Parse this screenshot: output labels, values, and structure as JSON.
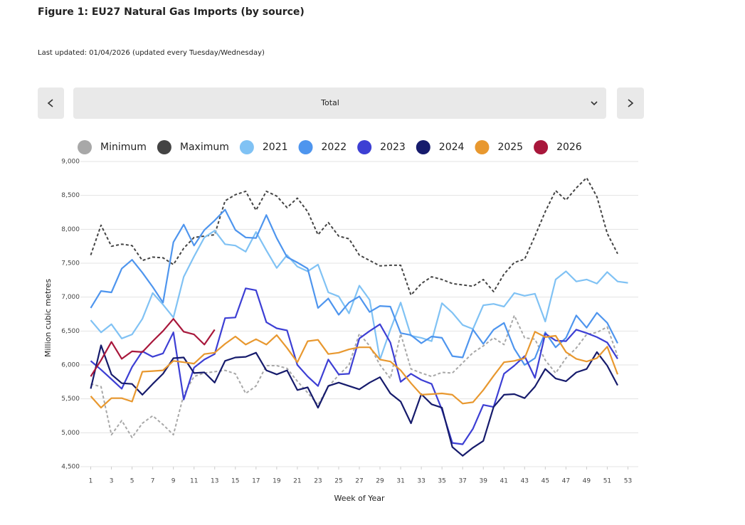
{
  "header": {
    "title": "Figure 1: EU27 Natural Gas Imports (by source)",
    "subtitle": "Last updated: 01/04/2026 (updated every Tuesday/Wednesday)"
  },
  "controls": {
    "selected": "Total"
  },
  "chart_data": {
    "type": "line",
    "x_label": "Week of Year",
    "y_label": "Million cubic metres",
    "x": [
      1,
      2,
      3,
      4,
      5,
      6,
      7,
      8,
      9,
      10,
      11,
      12,
      13,
      14,
      15,
      16,
      17,
      18,
      19,
      20,
      21,
      22,
      23,
      24,
      25,
      26,
      27,
      28,
      29,
      30,
      31,
      32,
      33,
      34,
      35,
      36,
      37,
      38,
      39,
      40,
      41,
      42,
      43,
      44,
      45,
      46,
      47,
      48,
      49,
      50,
      51,
      52,
      53
    ],
    "xlim": [
      0,
      54
    ],
    "xticks": [
      1,
      3,
      5,
      7,
      9,
      11,
      13,
      15,
      17,
      19,
      21,
      23,
      25,
      27,
      29,
      31,
      33,
      35,
      37,
      39,
      41,
      43,
      45,
      47,
      49,
      51,
      53
    ],
    "ylim": [
      4500,
      9000
    ],
    "yticks": [
      {
        "value": 4500,
        "label": "4,500"
      },
      {
        "value": 5000,
        "label": "5,000"
      },
      {
        "value": 5500,
        "label": "5,500"
      },
      {
        "value": 6000,
        "label": "6,000"
      },
      {
        "value": 6500,
        "label": "6,500"
      },
      {
        "value": 7000,
        "label": "7,000"
      },
      {
        "value": 7500,
        "label": "7,500"
      },
      {
        "value": 8000,
        "label": "8,000"
      },
      {
        "value": 8500,
        "label": "8,500"
      },
      {
        "value": 9000,
        "label": "9,000"
      }
    ],
    "grid": true,
    "legend": "top",
    "series": [
      {
        "name": "Minimum",
        "color": "#a8a8a8",
        "dashed": true,
        "values": [
          5720,
          5680,
          4970,
          5180,
          4930,
          5140,
          5250,
          5120,
          4970,
          5560,
          5830,
          5880,
          5900,
          5920,
          5870,
          5580,
          5690,
          5990,
          5990,
          5950,
          5760,
          5590,
          5410,
          5680,
          5850,
          6000,
          6460,
          6280,
          6000,
          5800,
          6460,
          5940,
          5880,
          5830,
          5890,
          5880,
          6030,
          6180,
          6280,
          6400,
          6300,
          6730,
          6400,
          6380,
          6070,
          5880,
          6100,
          6250,
          6450,
          6480,
          6560,
          6130,
          null
        ]
      },
      {
        "name": "Maximum",
        "color": "#444444",
        "dashed": true,
        "values": [
          7620,
          8060,
          7750,
          7780,
          7760,
          7540,
          7590,
          7580,
          7480,
          7720,
          7880,
          7900,
          7920,
          8420,
          8510,
          8560,
          8280,
          8560,
          8490,
          8320,
          8460,
          8260,
          7920,
          8100,
          7900,
          7860,
          7620,
          7540,
          7460,
          7470,
          7470,
          7030,
          7200,
          7300,
          7260,
          7200,
          7180,
          7160,
          7260,
          7080,
          7340,
          7510,
          7560,
          7900,
          8260,
          8570,
          8430,
          8610,
          8760,
          8480,
          7940,
          7640,
          null
        ]
      },
      {
        "name": "2021",
        "color": "#80c2f4",
        "dashed": false,
        "values": [
          6660,
          6480,
          6600,
          6390,
          6450,
          6680,
          7060,
          6890,
          6700,
          7300,
          7600,
          7880,
          7980,
          7780,
          7760,
          7670,
          7960,
          7690,
          7430,
          7620,
          7450,
          7380,
          7480,
          7070,
          7010,
          6760,
          7170,
          6960,
          6080,
          6520,
          6920,
          6430,
          6400,
          6350,
          6910,
          6770,
          6590,
          6530,
          6880,
          6900,
          6860,
          7060,
          7020,
          7050,
          6640,
          7260,
          7380,
          7230,
          7260,
          7200,
          7370,
          7230,
          7210
        ]
      },
      {
        "name": "2022",
        "color": "#4e95ee",
        "dashed": false,
        "values": [
          6840,
          7090,
          7070,
          7420,
          7550,
          7360,
          7150,
          6920,
          7810,
          8070,
          7760,
          7990,
          8130,
          8290,
          7990,
          7880,
          7870,
          8210,
          7870,
          7590,
          7510,
          7420,
          6840,
          6980,
          6740,
          6920,
          7010,
          6780,
          6870,
          6860,
          6470,
          6440,
          6320,
          6420,
          6400,
          6130,
          6110,
          6520,
          6310,
          6520,
          6620,
          6240,
          6000,
          6100,
          6480,
          6260,
          6400,
          6730,
          6550,
          6770,
          6620,
          6320,
          null
        ]
      },
      {
        "name": "2023",
        "color": "#3d3fd4",
        "dashed": false,
        "values": [
          6060,
          5930,
          5790,
          5650,
          5970,
          6200,
          6120,
          6170,
          6480,
          5490,
          5960,
          6080,
          6160,
          6690,
          6700,
          7130,
          7100,
          6630,
          6540,
          6510,
          6000,
          5830,
          5690,
          6080,
          5860,
          5870,
          6390,
          6500,
          6600,
          6330,
          5750,
          5870,
          5780,
          5720,
          5340,
          4850,
          4830,
          5060,
          5410,
          5380,
          5870,
          5990,
          6130,
          5810,
          6460,
          6360,
          6350,
          6520,
          6470,
          6410,
          6330,
          6090,
          null
        ]
      },
      {
        "name": "2024",
        "color": "#161b6c",
        "dashed": false,
        "values": [
          5650,
          6290,
          5860,
          5730,
          5720,
          5560,
          5720,
          5870,
          6100,
          6110,
          5880,
          5890,
          5740,
          6060,
          6110,
          6120,
          6180,
          5920,
          5860,
          5920,
          5630,
          5670,
          5370,
          5690,
          5740,
          5690,
          5640,
          5740,
          5820,
          5580,
          5460,
          5140,
          5570,
          5420,
          5370,
          4790,
          4660,
          4780,
          4880,
          5380,
          5560,
          5570,
          5510,
          5680,
          5940,
          5800,
          5760,
          5890,
          5940,
          6190,
          5990,
          5700,
          null
        ]
      },
      {
        "name": "2025",
        "color": "#e8982f",
        "dashed": false,
        "values": [
          5540,
          5370,
          5510,
          5510,
          5460,
          5900,
          5910,
          5920,
          6060,
          6040,
          6020,
          6160,
          6180,
          6310,
          6420,
          6300,
          6380,
          6300,
          6440,
          6250,
          6040,
          6350,
          6370,
          6160,
          6180,
          6230,
          6260,
          6260,
          6080,
          6050,
          5920,
          5730,
          5560,
          5570,
          5580,
          5560,
          5430,
          5450,
          5630,
          5840,
          6040,
          6060,
          6100,
          6490,
          6410,
          6430,
          6190,
          6090,
          6050,
          6100,
          6270,
          5860,
          null
        ]
      },
      {
        "name": "2026",
        "color": "#a8173b",
        "dashed": false,
        "values": [
          5830,
          6070,
          6340,
          6090,
          6200,
          6190,
          6350,
          6500,
          6680,
          6490,
          6450,
          6300,
          6520,
          null,
          null,
          null,
          null,
          null,
          null,
          null,
          null,
          null,
          null,
          null,
          null,
          null,
          null,
          null,
          null,
          null,
          null,
          null,
          null,
          null,
          null,
          null,
          null,
          null,
          null,
          null,
          null,
          null,
          null,
          null,
          null,
          null,
          null,
          null,
          null,
          null,
          null,
          null,
          null
        ]
      }
    ]
  }
}
